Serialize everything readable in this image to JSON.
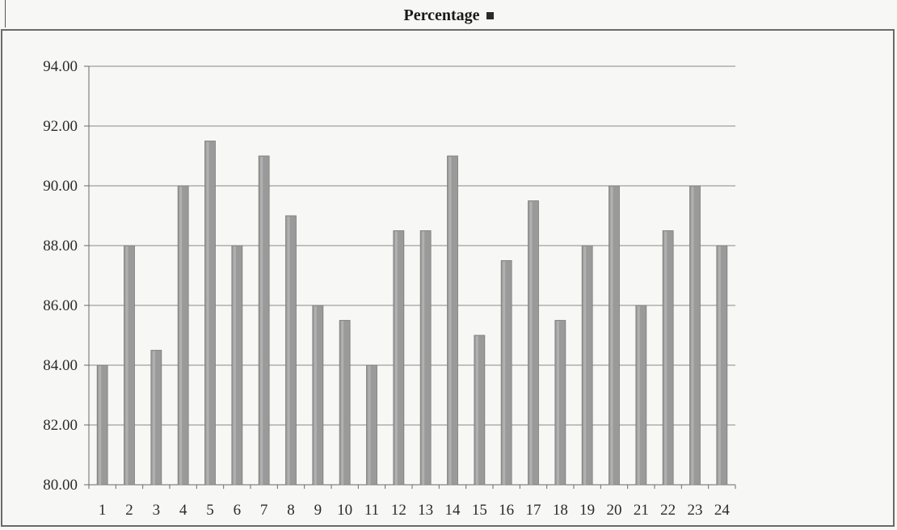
{
  "title": "Percentage",
  "chart_data": {
    "type": "bar",
    "title": "Percentage",
    "xlabel": "",
    "ylabel": "",
    "ylim": [
      80,
      94
    ],
    "yticks": [
      "80.00",
      "82.00",
      "84.00",
      "86.00",
      "88.00",
      "90.00",
      "92.00",
      "94.00"
    ],
    "grid": true,
    "bar_color": "#9a9a9a",
    "categories": [
      "1",
      "2",
      "3",
      "4",
      "5",
      "6",
      "7",
      "8",
      "9",
      "10",
      "11",
      "12",
      "13",
      "14",
      "15",
      "16",
      "17",
      "18",
      "19",
      "20",
      "21",
      "22",
      "23",
      "24"
    ],
    "values": [
      84.0,
      88.0,
      84.5,
      90.0,
      91.5,
      88.0,
      91.0,
      89.0,
      86.0,
      85.5,
      84.0,
      88.5,
      88.5,
      91.0,
      85.0,
      87.5,
      89.5,
      85.5,
      88.0,
      90.0,
      86.0,
      88.5,
      90.0,
      88.0
    ]
  }
}
